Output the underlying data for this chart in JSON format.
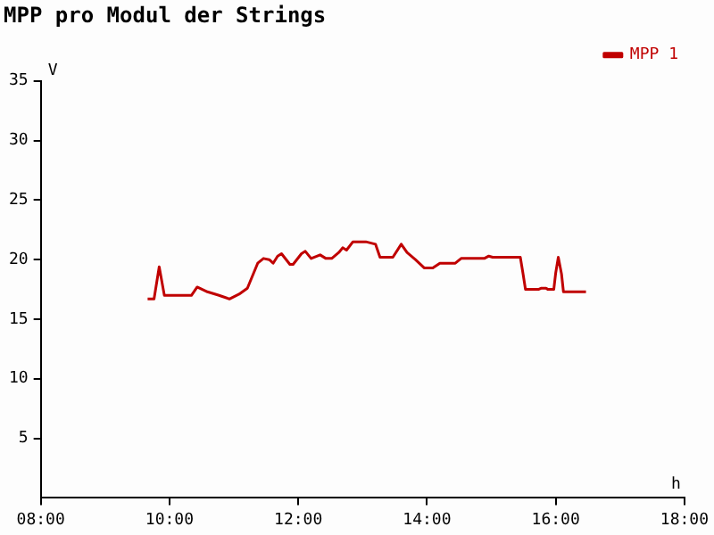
{
  "chart_data": {
    "type": "line",
    "title": "MPP pro Modul der Strings",
    "xlabel": "h",
    "ylabel": "V",
    "xlim": [
      8,
      18
    ],
    "xticks": [
      {
        "value": 8,
        "label": "08:00"
      },
      {
        "value": 10,
        "label": "10:00"
      },
      {
        "value": 12,
        "label": "12:00"
      },
      {
        "value": 14,
        "label": "14:00"
      },
      {
        "value": 16,
        "label": "16:00"
      },
      {
        "value": 18,
        "label": "18:00"
      }
    ],
    "ylim": [
      0,
      35
    ],
    "yticks": [
      5,
      10,
      15,
      20,
      25,
      30,
      35
    ],
    "grid": false,
    "legend": "top right",
    "marker": "none",
    "line_style": "solid",
    "series": [
      {
        "name": "MPP 1",
        "color": "#c00000",
        "x": [
          9.66,
          9.76,
          9.84,
          9.92,
          10.34,
          10.43,
          10.59,
          10.77,
          10.93,
          11.08,
          11.21,
          11.37,
          11.46,
          11.55,
          11.61,
          11.68,
          11.74,
          11.87,
          11.92,
          12.05,
          12.11,
          12.2,
          12.34,
          12.43,
          12.52,
          12.63,
          12.69,
          12.75,
          12.85,
          13.05,
          13.2,
          13.27,
          13.47,
          13.6,
          13.69,
          13.82,
          13.96,
          14.09,
          14.2,
          14.44,
          14.53,
          14.89,
          14.96,
          15.02,
          15.45,
          15.49,
          15.53,
          15.73,
          15.77,
          15.85,
          15.88,
          15.97,
          16.0,
          16.04,
          16.09,
          16.12,
          16.47
        ],
        "values": [
          16.7,
          16.7,
          19.4,
          17.0,
          17.0,
          17.7,
          17.3,
          17.0,
          16.7,
          17.1,
          17.6,
          19.7,
          20.1,
          20.0,
          19.7,
          20.3,
          20.5,
          19.6,
          19.6,
          20.5,
          20.7,
          20.1,
          20.4,
          20.1,
          20.1,
          20.6,
          21.0,
          20.8,
          21.5,
          21.5,
          21.3,
          20.2,
          20.2,
          21.3,
          20.6,
          20.0,
          19.3,
          19.3,
          19.7,
          19.7,
          20.1,
          20.1,
          20.3,
          20.2,
          20.2,
          18.9,
          17.5,
          17.5,
          17.6,
          17.6,
          17.5,
          17.5,
          18.9,
          20.2,
          18.8,
          17.3,
          17.3
        ]
      }
    ]
  }
}
